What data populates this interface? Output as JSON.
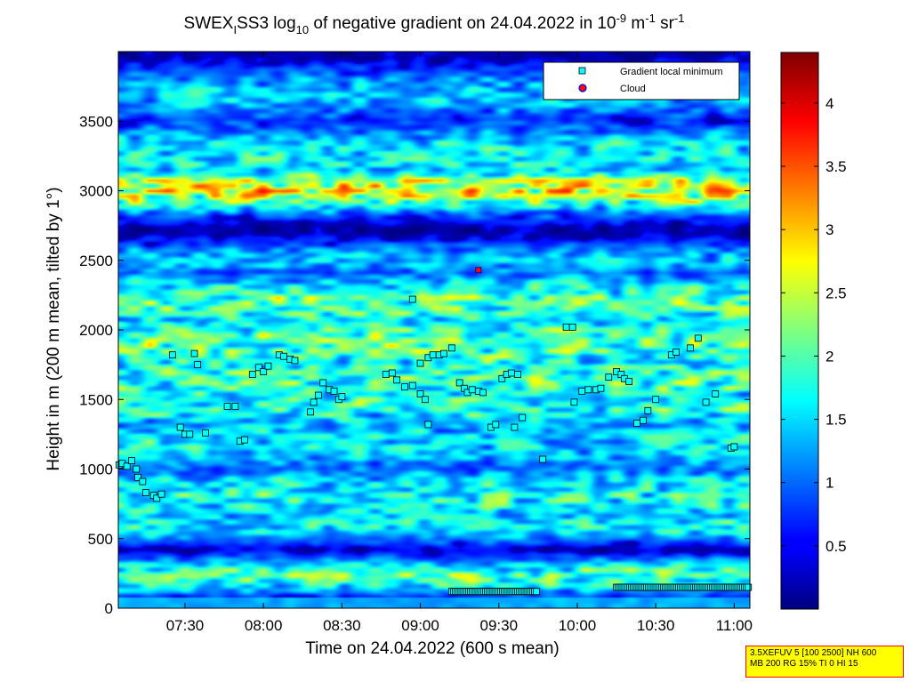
{
  "chart_data": {
    "type": "heatmap",
    "title": {
      "parts": [
        "SWEX",
        "I",
        "SS3 log",
        "10",
        " of negative gradient on 24.04.2022 in 10",
        "-9",
        " m",
        "-1",
        " sr",
        "-1"
      ]
    },
    "xlabel": "Time on 24.04.2022 (600 s mean)",
    "ylabel": "Height in m (200 m mean, tilted by 1°)",
    "x_ticks": [
      "07:30",
      "08:00",
      "08:30",
      "09:00",
      "09:30",
      "10:00",
      "10:30",
      "11:00"
    ],
    "x_tick_hours": [
      7.5,
      8.0,
      8.5,
      9.0,
      9.5,
      10.0,
      10.5,
      11.0
    ],
    "xlim_hours": [
      7.075,
      11.1
    ],
    "y_ticks": [
      "0",
      "500",
      "1000",
      "1500",
      "2000",
      "2500",
      "3000",
      "3500"
    ],
    "y_tick_values": [
      0,
      500,
      1000,
      1500,
      2000,
      2500,
      3000,
      3500
    ],
    "ylim": [
      0,
      4000
    ],
    "colorbar": {
      "ticks": [
        "0.5",
        "1",
        "1.5",
        "2",
        "2.5",
        "3",
        "3.5",
        "4"
      ],
      "tick_values": [
        0.5,
        1,
        1.5,
        2,
        2.5,
        3,
        3.5,
        4
      ],
      "range": [
        0,
        4.4
      ],
      "colormap": "jet"
    },
    "legend": {
      "placement": "top-right",
      "entries": [
        {
          "label": "Gradient local minimum",
          "marker": "square",
          "color": "#00ffff"
        },
        {
          "label": "Cloud",
          "marker": "circle",
          "color": "#ff0000",
          "edge": "#0000ff"
        }
      ]
    },
    "cloud_points": [
      {
        "hour": 9.37,
        "height": 2430
      }
    ],
    "gradient_minima": [
      {
        "hour": 7.08,
        "height": 1030
      },
      {
        "hour": 7.1,
        "height": 1040
      },
      {
        "hour": 7.13,
        "height": 1020
      },
      {
        "hour": 7.16,
        "height": 1060
      },
      {
        "hour": 7.19,
        "height": 1000
      },
      {
        "hour": 7.2,
        "height": 940
      },
      {
        "hour": 7.23,
        "height": 910
      },
      {
        "hour": 7.25,
        "height": 830
      },
      {
        "hour": 7.3,
        "height": 810
      },
      {
        "hour": 7.32,
        "height": 790
      },
      {
        "hour": 7.35,
        "height": 820
      },
      {
        "hour": 7.42,
        "height": 1820
      },
      {
        "hour": 7.47,
        "height": 1300
      },
      {
        "hour": 7.5,
        "height": 1250
      },
      {
        "hour": 7.53,
        "height": 1250
      },
      {
        "hour": 7.56,
        "height": 1830
      },
      {
        "hour": 7.58,
        "height": 1750
      },
      {
        "hour": 7.63,
        "height": 1260
      },
      {
        "hour": 7.77,
        "height": 1450
      },
      {
        "hour": 7.82,
        "height": 1450
      },
      {
        "hour": 7.85,
        "height": 1200
      },
      {
        "hour": 7.88,
        "height": 1210
      },
      {
        "hour": 7.93,
        "height": 1680
      },
      {
        "hour": 7.97,
        "height": 1730
      },
      {
        "hour": 8.0,
        "height": 1700
      },
      {
        "hour": 8.03,
        "height": 1740
      },
      {
        "hour": 8.1,
        "height": 1820
      },
      {
        "hour": 8.13,
        "height": 1810
      },
      {
        "hour": 8.17,
        "height": 1790
      },
      {
        "hour": 8.2,
        "height": 1780
      },
      {
        "hour": 8.3,
        "height": 1410
      },
      {
        "hour": 8.32,
        "height": 1480
      },
      {
        "hour": 8.35,
        "height": 1530
      },
      {
        "hour": 8.38,
        "height": 1620
      },
      {
        "hour": 8.42,
        "height": 1570
      },
      {
        "hour": 8.45,
        "height": 1560
      },
      {
        "hour": 8.48,
        "height": 1500
      },
      {
        "hour": 8.5,
        "height": 1520
      },
      {
        "hour": 8.78,
        "height": 1680
      },
      {
        "hour": 8.82,
        "height": 1690
      },
      {
        "hour": 8.85,
        "height": 1640
      },
      {
        "hour": 8.9,
        "height": 1590
      },
      {
        "hour": 8.95,
        "height": 1600
      },
      {
        "hour": 9.0,
        "height": 1540
      },
      {
        "hour": 9.03,
        "height": 1500
      },
      {
        "hour": 9.05,
        "height": 1320
      },
      {
        "hour": 8.95,
        "height": 2220
      },
      {
        "hour": 9.0,
        "height": 1760
      },
      {
        "hour": 9.05,
        "height": 1800
      },
      {
        "hour": 9.08,
        "height": 1820
      },
      {
        "hour": 9.12,
        "height": 1820
      },
      {
        "hour": 9.15,
        "height": 1830
      },
      {
        "hour": 9.2,
        "height": 1870
      },
      {
        "hour": 9.25,
        "height": 1620
      },
      {
        "hour": 9.28,
        "height": 1580
      },
      {
        "hour": 9.3,
        "height": 1550
      },
      {
        "hour": 9.33,
        "height": 1570
      },
      {
        "hour": 9.37,
        "height": 1560
      },
      {
        "hour": 9.4,
        "height": 1550
      },
      {
        "hour": 9.45,
        "height": 1300
      },
      {
        "hour": 9.48,
        "height": 1320
      },
      {
        "hour": 9.52,
        "height": 1650
      },
      {
        "hour": 9.55,
        "height": 1680
      },
      {
        "hour": 9.58,
        "height": 1690
      },
      {
        "hour": 9.62,
        "height": 1680
      },
      {
        "hour": 9.6,
        "height": 1300
      },
      {
        "hour": 9.65,
        "height": 1370
      },
      {
        "hour": 9.78,
        "height": 1070
      },
      {
        "hour": 9.93,
        "height": 2020
      },
      {
        "hour": 9.97,
        "height": 2020
      },
      {
        "hour": 9.98,
        "height": 1480
      },
      {
        "hour": 10.03,
        "height": 1560
      },
      {
        "hour": 10.07,
        "height": 1570
      },
      {
        "hour": 10.12,
        "height": 1570
      },
      {
        "hour": 10.15,
        "height": 1580
      },
      {
        "hour": 10.2,
        "height": 1660
      },
      {
        "hour": 10.25,
        "height": 1700
      },
      {
        "hour": 10.28,
        "height": 1680
      },
      {
        "hour": 10.3,
        "height": 1650
      },
      {
        "hour": 10.33,
        "height": 1630
      },
      {
        "hour": 10.38,
        "height": 1330
      },
      {
        "hour": 10.42,
        "height": 1350
      },
      {
        "hour": 10.45,
        "height": 1420
      },
      {
        "hour": 10.5,
        "height": 1500
      },
      {
        "hour": 10.6,
        "height": 1820
      },
      {
        "hour": 10.63,
        "height": 1840
      },
      {
        "hour": 10.72,
        "height": 1870
      },
      {
        "hour": 10.77,
        "height": 1940
      },
      {
        "hour": 10.82,
        "height": 1480
      },
      {
        "hour": 10.88,
        "height": 1540
      },
      {
        "hour": 10.98,
        "height": 1150
      },
      {
        "hour": 11.0,
        "height": 1160
      }
    ],
    "ground_band_minima": [
      {
        "hour_start": 9.2,
        "hour_end": 9.75,
        "height": 120
      },
      {
        "hour_start": 10.25,
        "hour_end": 11.1,
        "height": 150
      }
    ]
  },
  "info_box": {
    "line1": "3.5XEFUV 5 [100 2500] NH 600",
    "line2": "MB 200 RG 15% TI 0 HI 15"
  }
}
